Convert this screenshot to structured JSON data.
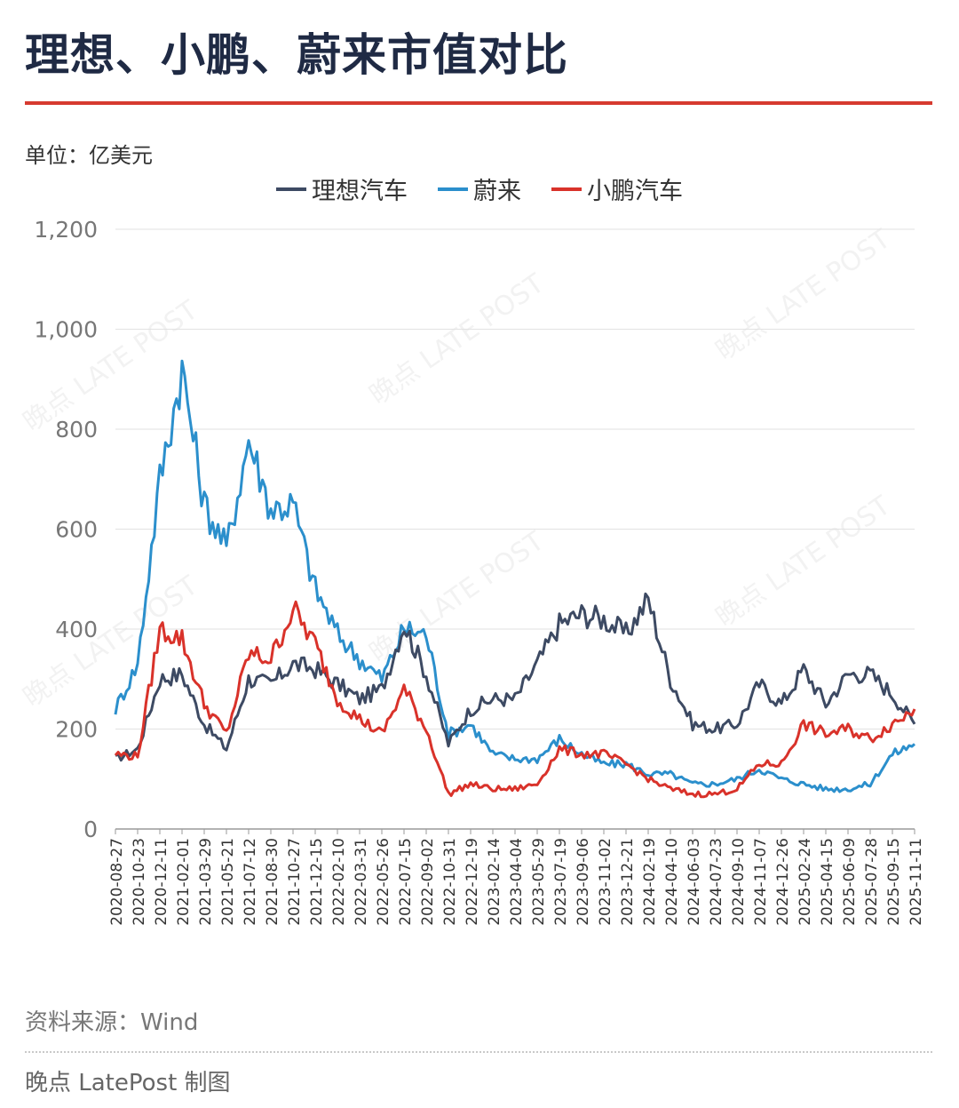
{
  "header": {
    "title": "理想、小鹏、蔚来市值对比",
    "unit": "单位：亿美元"
  },
  "footer": {
    "source": "资料来源：Wind",
    "credit": "晚点 LatePost 制图"
  },
  "watermark": "晚点 LATE POST",
  "colors": {
    "li": "#3d4a63",
    "nio": "#2b8fcc",
    "xpeng": "#d9322a",
    "accent": "#d63a2f",
    "grid": "#e2e2e2"
  },
  "chart_data": {
    "type": "line",
    "title": "理想、小鹏、蔚来市值对比",
    "ylabel": "单位：亿美元",
    "xlabel": "",
    "ylim": [
      0,
      1200
    ],
    "yticks": [
      0,
      200,
      400,
      600,
      800,
      1000,
      1200
    ],
    "ytick_labels": [
      "0",
      "200",
      "400",
      "600",
      "800",
      "1,000",
      "1,200"
    ],
    "grid": true,
    "legend_position": "top-center",
    "categories": [
      "2020-08-27",
      "2020-10-23",
      "2020-12-11",
      "2021-02-01",
      "2021-03-29",
      "2021-05-21",
      "2021-07-12",
      "2021-08-30",
      "2021-10-27",
      "2021-12-15",
      "2022-02-10",
      "2022-03-31",
      "2022-05-26",
      "2022-07-15",
      "2022-09-02",
      "2022-10-31",
      "2022-12-19",
      "2023-02-14",
      "2023-04-04",
      "2023-05-29",
      "2023-07-19",
      "2023-09-06",
      "2023-11-02",
      "2023-12-21",
      "2024-02-19",
      "2024-04-10",
      "2024-06-03",
      "2024-07-23",
      "2024-09-10",
      "2024-11-07",
      "2024-12-26",
      "2025-02-24",
      "2025-04-15",
      "2025-06-09",
      "2025-07-28",
      "2025-09-15",
      "2025-11-11"
    ],
    "series": [
      {
        "name": "理想汽车",
        "key": "li",
        "values": [
          140,
          160,
          300,
          310,
          210,
          160,
          300,
          290,
          330,
          320,
          290,
          260,
          280,
          410,
          310,
          170,
          240,
          260,
          260,
          330,
          410,
          430,
          420,
          390,
          460,
          300,
          210,
          200,
          210,
          290,
          250,
          320,
          250,
          310,
          310,
          270,
          210
        ]
      },
      {
        "name": "蔚来",
        "key": "nio",
        "values": [
          240,
          330,
          700,
          920,
          650,
          560,
          780,
          640,
          650,
          480,
          390,
          340,
          300,
          400,
          390,
          190,
          210,
          150,
          140,
          140,
          180,
          150,
          130,
          130,
          110,
          110,
          90,
          90,
          100,
          120,
          100,
          90,
          80,
          80,
          90,
          150,
          170
        ]
      },
      {
        "name": "小鹏汽车",
        "key": "xpeng",
        "values": [
          150,
          145,
          400,
          380,
          250,
          190,
          350,
          340,
          440,
          370,
          260,
          220,
          190,
          280,
          200,
          70,
          90,
          80,
          80,
          90,
          160,
          150,
          150,
          130,
          100,
          80,
          70,
          70,
          80,
          130,
          130,
          210,
          190,
          200,
          180,
          210,
          240
        ]
      }
    ]
  }
}
